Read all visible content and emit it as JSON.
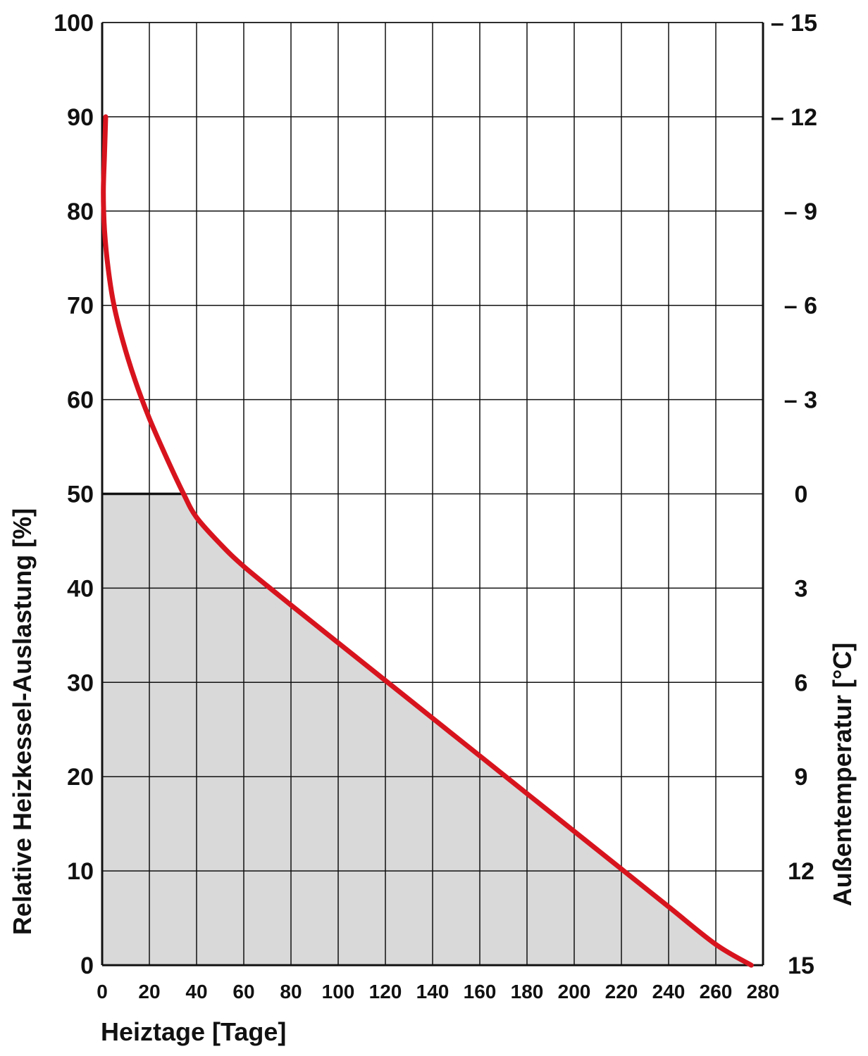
{
  "chart_data": {
    "type": "area",
    "xlabel": "Heiztage [Tage]",
    "ylabel": "Relative Heizkessel-Auslastung [%]",
    "y2label": "Außentemperatur [°C]",
    "xlim": [
      0,
      280
    ],
    "ylim": [
      0,
      100
    ],
    "x_ticks": [
      0,
      20,
      40,
      60,
      80,
      100,
      120,
      140,
      160,
      180,
      200,
      220,
      240,
      260,
      280
    ],
    "x_tick_labels": [
      "0",
      "20",
      "40",
      "60",
      "80",
      "100",
      "120",
      "140",
      "160",
      "180",
      "200",
      "220",
      "240",
      "260",
      "280"
    ],
    "y_ticks": [
      0,
      10,
      20,
      30,
      40,
      50,
      60,
      70,
      80,
      90,
      100
    ],
    "y_tick_labels": [
      "0",
      "10",
      "20",
      "30",
      "40",
      "50",
      "60",
      "70",
      "80",
      "90",
      "100"
    ],
    "y2_ticks": [
      0,
      10,
      20,
      30,
      40,
      50,
      60,
      70,
      80,
      90,
      100
    ],
    "y2_tick_labels": [
      "15",
      "12",
      "9",
      "6",
      "3",
      "0",
      "– 3",
      "– 6",
      "– 9",
      "– 12",
      "– 15"
    ],
    "grid": true,
    "series": [
      {
        "color": "#d7141e",
        "x": [
          1.5,
          1.0,
          0.5,
          1.0,
          2.5,
          5.0,
          9.0,
          14.0,
          20.0,
          27.0,
          34.5,
          40.0,
          50.0,
          60.0,
          80.0,
          100.0,
          120.0,
          140.0,
          160.0,
          180.0,
          200.0,
          220.0,
          240.0,
          260.0,
          275.0
        ],
        "y": [
          90.0,
          86.0,
          82.0,
          78.0,
          74.0,
          70.0,
          66.0,
          62.0,
          58.0,
          54.0,
          50.0,
          47.5,
          44.7,
          42.3,
          38.2,
          34.2,
          30.2,
          26.2,
          22.2,
          18.2,
          14.2,
          10.2,
          6.2,
          2.2,
          0.0
        ]
      }
    ],
    "shaded_region": {
      "color": "#d9d9d9",
      "max_y": 50
    },
    "reference_line": {
      "y": 50,
      "x_from": 0,
      "x_to": 34.5,
      "color": "#111111"
    }
  }
}
